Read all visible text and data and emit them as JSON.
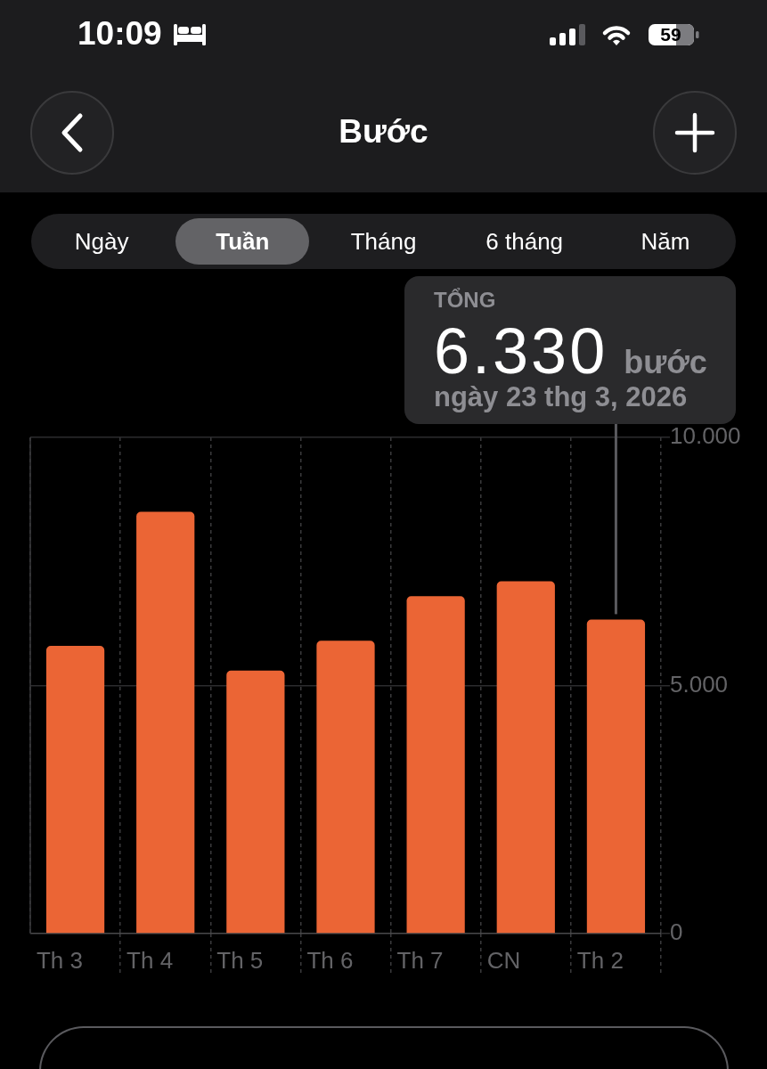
{
  "chart_data": {
    "type": "bar",
    "title": "Bước",
    "categories": [
      "Th 3",
      "Th 4",
      "Th 5",
      "Th 6",
      "Th 7",
      "CN",
      "Th 2"
    ],
    "values": [
      5800,
      8500,
      5300,
      5900,
      6800,
      7100,
      6330
    ],
    "color": "#eb6535",
    "ylim": [
      0,
      10000
    ],
    "yticks": [
      0,
      {
        "value": 5000,
        "label": "5.000"
      },
      {
        "value": 10000,
        "label": "10.000"
      }
    ],
    "grid": true,
    "ref_lines": [
      {
        "axis": "x",
        "value": "Th 2",
        "color": "#5a5a5e"
      }
    ],
    "annotations": [
      "10:09",
      "59",
      "Ngày",
      "Tuần",
      "Tháng",
      "6 tháng",
      "Năm",
      "TỔNG",
      "6.330",
      "bước",
      "ngày 23 thg 3, 2026"
    ]
  }
}
